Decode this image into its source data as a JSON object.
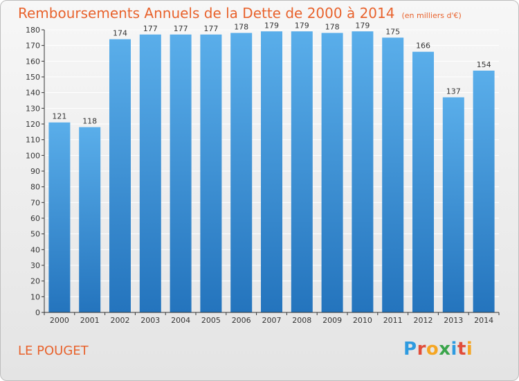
{
  "chart_data": {
    "type": "bar",
    "title": "Remboursements Annuels de la Dette de 2000 à 2014",
    "unit_label": "(en milliers d'€)",
    "xlabel": "",
    "ylabel": "",
    "categories": [
      "2000",
      "2001",
      "2002",
      "2003",
      "2004",
      "2005",
      "2006",
      "2007",
      "2008",
      "2009",
      "2010",
      "2011",
      "2012",
      "2013",
      "2014"
    ],
    "values": [
      121,
      118,
      174,
      177,
      177,
      177,
      178,
      179,
      179,
      178,
      179,
      175,
      166,
      137,
      154
    ],
    "ylim": [
      0,
      180
    ],
    "yticks": [
      0,
      10,
      20,
      30,
      40,
      50,
      60,
      70,
      80,
      90,
      100,
      110,
      120,
      130,
      140,
      150,
      160,
      170,
      180
    ],
    "grid": true,
    "legend": "none"
  },
  "commune": "LE POUGET",
  "logo_text": "Proxiti",
  "colors": {
    "title": "#e8622c",
    "bar_top": "#5aaeea",
    "bar_bottom": "#2474bd",
    "grid": "#ffffff",
    "axis": "#333333"
  }
}
